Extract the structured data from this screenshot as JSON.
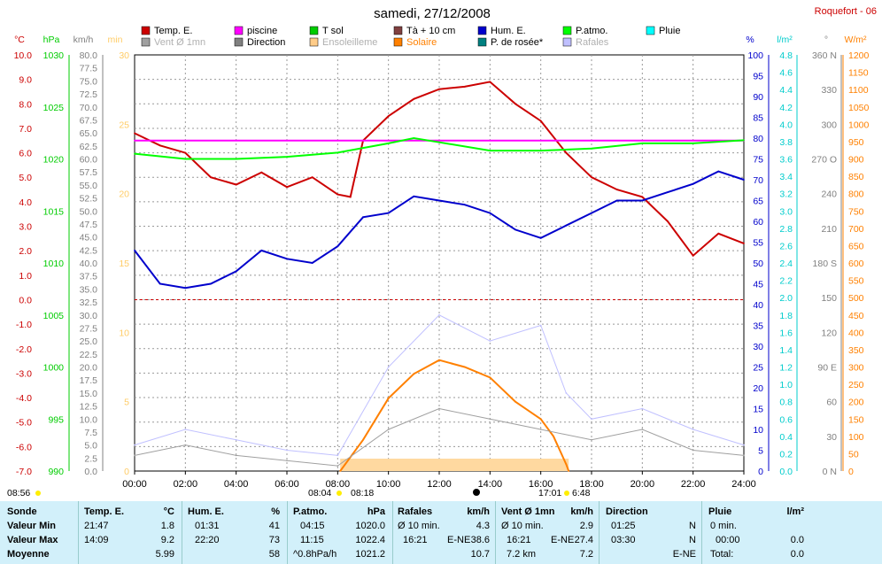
{
  "title": "samedi, 27/12/2008",
  "station": "Roquefort - 06",
  "legend": [
    {
      "label": "Temp. E.",
      "color": "#cc0000"
    },
    {
      "label": "piscine",
      "color": "#ff00ff"
    },
    {
      "label": "T sol",
      "color": "#00cc00"
    },
    {
      "label": "Tà + 10 cm",
      "color": "#804040"
    },
    {
      "label": "Hum. E.",
      "color": "#0000cc"
    },
    {
      "label": "P.atmo.",
      "color": "#00ff00"
    },
    {
      "label": "Pluie",
      "color": "#00ffff"
    },
    {
      "label": "Vent Ø 1mn",
      "color": "#a0a0a0"
    },
    {
      "label": "Direction",
      "color": "#808080"
    },
    {
      "label": "Ensoleilleme",
      "color": "#ffcc88"
    },
    {
      "label": "Solaire",
      "color": "#ff8000"
    },
    {
      "label": "P. de rosée*",
      "color": "#008080"
    },
    {
      "label": "Rafales",
      "color": "#c0c0ff"
    }
  ],
  "axes": {
    "temp": {
      "unit": "°C",
      "ticks": [
        "10.0",
        "9.0",
        "8.0",
        "7.0",
        "6.0",
        "5.0",
        "4.0",
        "3.0",
        "2.0",
        "1.0",
        "0.0",
        "-1.0",
        "-2.0",
        "-3.0",
        "-4.0",
        "-5.0",
        "-6.0",
        "-7.0"
      ],
      "color": "#cc0000"
    },
    "press": {
      "unit": "hPa",
      "ticks": [
        "1030",
        "1025",
        "1020",
        "1015",
        "1010",
        "1005",
        "1000",
        "995",
        "990"
      ],
      "color": "#00cc00"
    },
    "wind": {
      "unit": "km/h",
      "ticks": [
        "80.0",
        "77.5",
        "75.0",
        "72.5",
        "70.0",
        "67.5",
        "65.0",
        "62.5",
        "60.0",
        "57.5",
        "55.0",
        "52.5",
        "50.0",
        "47.5",
        "45.0",
        "42.5",
        "40.0",
        "37.5",
        "35.0",
        "32.5",
        "30.0",
        "27.5",
        "25.0",
        "22.5",
        "20.0",
        "17.5",
        "15.0",
        "12.5",
        "10.0",
        "7.5",
        "5.0",
        "2.5",
        "0.0"
      ],
      "color": "#808080"
    },
    "min": {
      "unit": "min",
      "ticks": [
        "30",
        "25",
        "20",
        "15",
        "10",
        "5",
        "0"
      ],
      "color": "#ffcc66"
    },
    "hum": {
      "unit": "%",
      "ticks": [
        "100",
        "95",
        "90",
        "85",
        "80",
        "75",
        "70",
        "65",
        "60",
        "55",
        "50",
        "45",
        "40",
        "35",
        "30",
        "25",
        "20",
        "15",
        "10",
        "5",
        "0"
      ],
      "color": "#0000cc"
    },
    "rain": {
      "unit": "l/m²",
      "ticks": [
        "4.8",
        "4.6",
        "4.4",
        "4.2",
        "4.0",
        "3.8",
        "3.6",
        "3.4",
        "3.2",
        "3.0",
        "2.8",
        "2.6",
        "2.4",
        "2.2",
        "2.0",
        "1.8",
        "1.6",
        "1.4",
        "1.2",
        "1.0",
        "0.8",
        "0.6",
        "0.4",
        "0.2",
        "0.0"
      ],
      "color": "#00cccc"
    },
    "dir": {
      "unit": "°",
      "ticks": [
        "360 N",
        "330",
        "300",
        "270 O",
        "240",
        "210",
        "180 S",
        "150",
        "120",
        "90 E",
        "60",
        "30",
        "0 N"
      ],
      "color": "#808080"
    },
    "solar": {
      "unit": "W/m²",
      "ticks": [
        "1200",
        "1150",
        "1100",
        "1050",
        "1000",
        "950",
        "900",
        "850",
        "800",
        "750",
        "700",
        "650",
        "600",
        "550",
        "500",
        "450",
        "400",
        "350",
        "300",
        "250",
        "200",
        "150",
        "100",
        "50",
        "0"
      ],
      "color": "#ff8000"
    }
  },
  "x_ticks": [
    "00:00",
    "02:00",
    "04:00",
    "06:00",
    "08:00",
    "10:00",
    "12:00",
    "14:00",
    "16:00",
    "18:00",
    "20:00",
    "22:00",
    "24:00"
  ],
  "sun": {
    "dawn": "08:56",
    "sunrise": "08:04",
    "sunrise2": "08:18",
    "sunset": "17:01",
    "sunset2": "6:48"
  },
  "chart_data": {
    "type": "line",
    "x_unit": "hour",
    "series": [
      {
        "name": "Temp. E.",
        "color": "#cc0000",
        "x": [
          0,
          1,
          2,
          3,
          4,
          5,
          6,
          7,
          8,
          8.5,
          9,
          10,
          11,
          12,
          13,
          14,
          15,
          16,
          17,
          18,
          19,
          20,
          21,
          22,
          23,
          24
        ],
        "y": [
          6.8,
          6.3,
          6.0,
          5.0,
          4.7,
          5.2,
          4.6,
          5.0,
          4.3,
          4.2,
          6.5,
          7.5,
          8.2,
          8.6,
          8.7,
          8.9,
          8.0,
          7.3,
          6.0,
          5.0,
          4.5,
          4.2,
          3.2,
          1.8,
          2.7,
          2.3
        ]
      },
      {
        "name": "piscine",
        "color": "#ff00ff",
        "x": [
          0,
          24
        ],
        "y": [
          6.5,
          6.5
        ]
      },
      {
        "name": "P.atmo.",
        "color": "#00ff00",
        "x": [
          0,
          2,
          4,
          6,
          8,
          10,
          11,
          12,
          14,
          16,
          18,
          20,
          22,
          24
        ],
        "y": [
          1020.5,
          1020.0,
          1020.0,
          1020.2,
          1020.6,
          1021.5,
          1022.0,
          1021.6,
          1020.8,
          1020.8,
          1021.0,
          1021.5,
          1021.5,
          1021.8
        ]
      },
      {
        "name": "Hum. E.",
        "color": "#0000cc",
        "x": [
          0,
          1,
          2,
          3,
          4,
          5,
          6,
          7,
          8,
          9,
          10,
          11,
          12,
          13,
          14,
          15,
          16,
          17,
          18,
          19,
          20,
          21,
          22,
          23,
          24
        ],
        "y": [
          53,
          45,
          44,
          45,
          48,
          53,
          51,
          50,
          54,
          61,
          62,
          66,
          65,
          64,
          62,
          58,
          56,
          59,
          62,
          65,
          65,
          67,
          69,
          72,
          70
        ]
      },
      {
        "name": "Solaire",
        "color": "#ff8000",
        "x": [
          8.1,
          9,
          10,
          11,
          12,
          12.5,
          13,
          14,
          15,
          16,
          16.5,
          17,
          17.1
        ],
        "y": [
          0,
          90,
          210,
          280,
          320,
          310,
          300,
          270,
          200,
          150,
          100,
          20,
          0
        ]
      },
      {
        "name": "Vent Ø 1mn",
        "color": "#a0a0a0",
        "x": [
          0,
          2,
          4,
          6,
          8,
          10,
          12,
          14,
          16,
          18,
          20,
          22,
          24
        ],
        "y": [
          3,
          5,
          3,
          2,
          1,
          8,
          12,
          10,
          8,
          6,
          8,
          4,
          3
        ]
      },
      {
        "name": "Rafales",
        "color": "#c0c0ff",
        "x": [
          0,
          2,
          4,
          6,
          8,
          10,
          12,
          14,
          16,
          17,
          18,
          20,
          22,
          24
        ],
        "y": [
          5,
          8,
          6,
          4,
          3,
          20,
          30,
          25,
          28,
          15,
          10,
          12,
          8,
          5
        ]
      }
    ]
  },
  "table": {
    "sonde": {
      "header": "Sonde",
      "rows": [
        "Valeur Min",
        "Valeur Max",
        "Moyenne"
      ]
    },
    "temp": {
      "header": "Temp. E.",
      "unit": "°C",
      "rows": [
        [
          "21:47",
          "1.8"
        ],
        [
          "14:09",
          "9.2"
        ],
        [
          "",
          "5.99"
        ]
      ]
    },
    "hum": {
      "header": "Hum. E.",
      "unit": "%",
      "rows": [
        [
          "01:31",
          "41"
        ],
        [
          "22:20",
          "73"
        ],
        [
          "",
          "58"
        ]
      ]
    },
    "press": {
      "header": "P.atmo.",
      "unit": "hPa",
      "rows": [
        [
          "04:15",
          "1020.0"
        ],
        [
          "11:15",
          "1022.4"
        ],
        [
          "^0.8hPa/h",
          "1021.2"
        ]
      ]
    },
    "rafales": {
      "header": "Rafales",
      "unit": "km/h",
      "rows": [
        [
          "Ø 10 min.",
          "",
          "4.3"
        ],
        [
          "16:21",
          "E-NE",
          "38.6"
        ],
        [
          "",
          "",
          "10.7"
        ]
      ]
    },
    "vent": {
      "header": "Vent Ø 1mn",
      "unit": "km/h",
      "rows": [
        [
          "Ø 10 min.",
          "",
          "2.9"
        ],
        [
          "16:21",
          "E-NE",
          "27.4"
        ],
        [
          "7.2 km",
          "",
          "7.2"
        ]
      ]
    },
    "dir": {
      "header": "Direction",
      "rows": [
        [
          "01:25",
          "N"
        ],
        [
          "03:30",
          "N"
        ],
        [
          "",
          "E-NE"
        ]
      ]
    },
    "rain": {
      "header": "Pluie",
      "unit": "l/m²",
      "rows": [
        [
          "0 min.",
          ""
        ],
        [
          "00:00",
          "0.0"
        ],
        [
          "Total:",
          "0.0"
        ]
      ]
    }
  }
}
